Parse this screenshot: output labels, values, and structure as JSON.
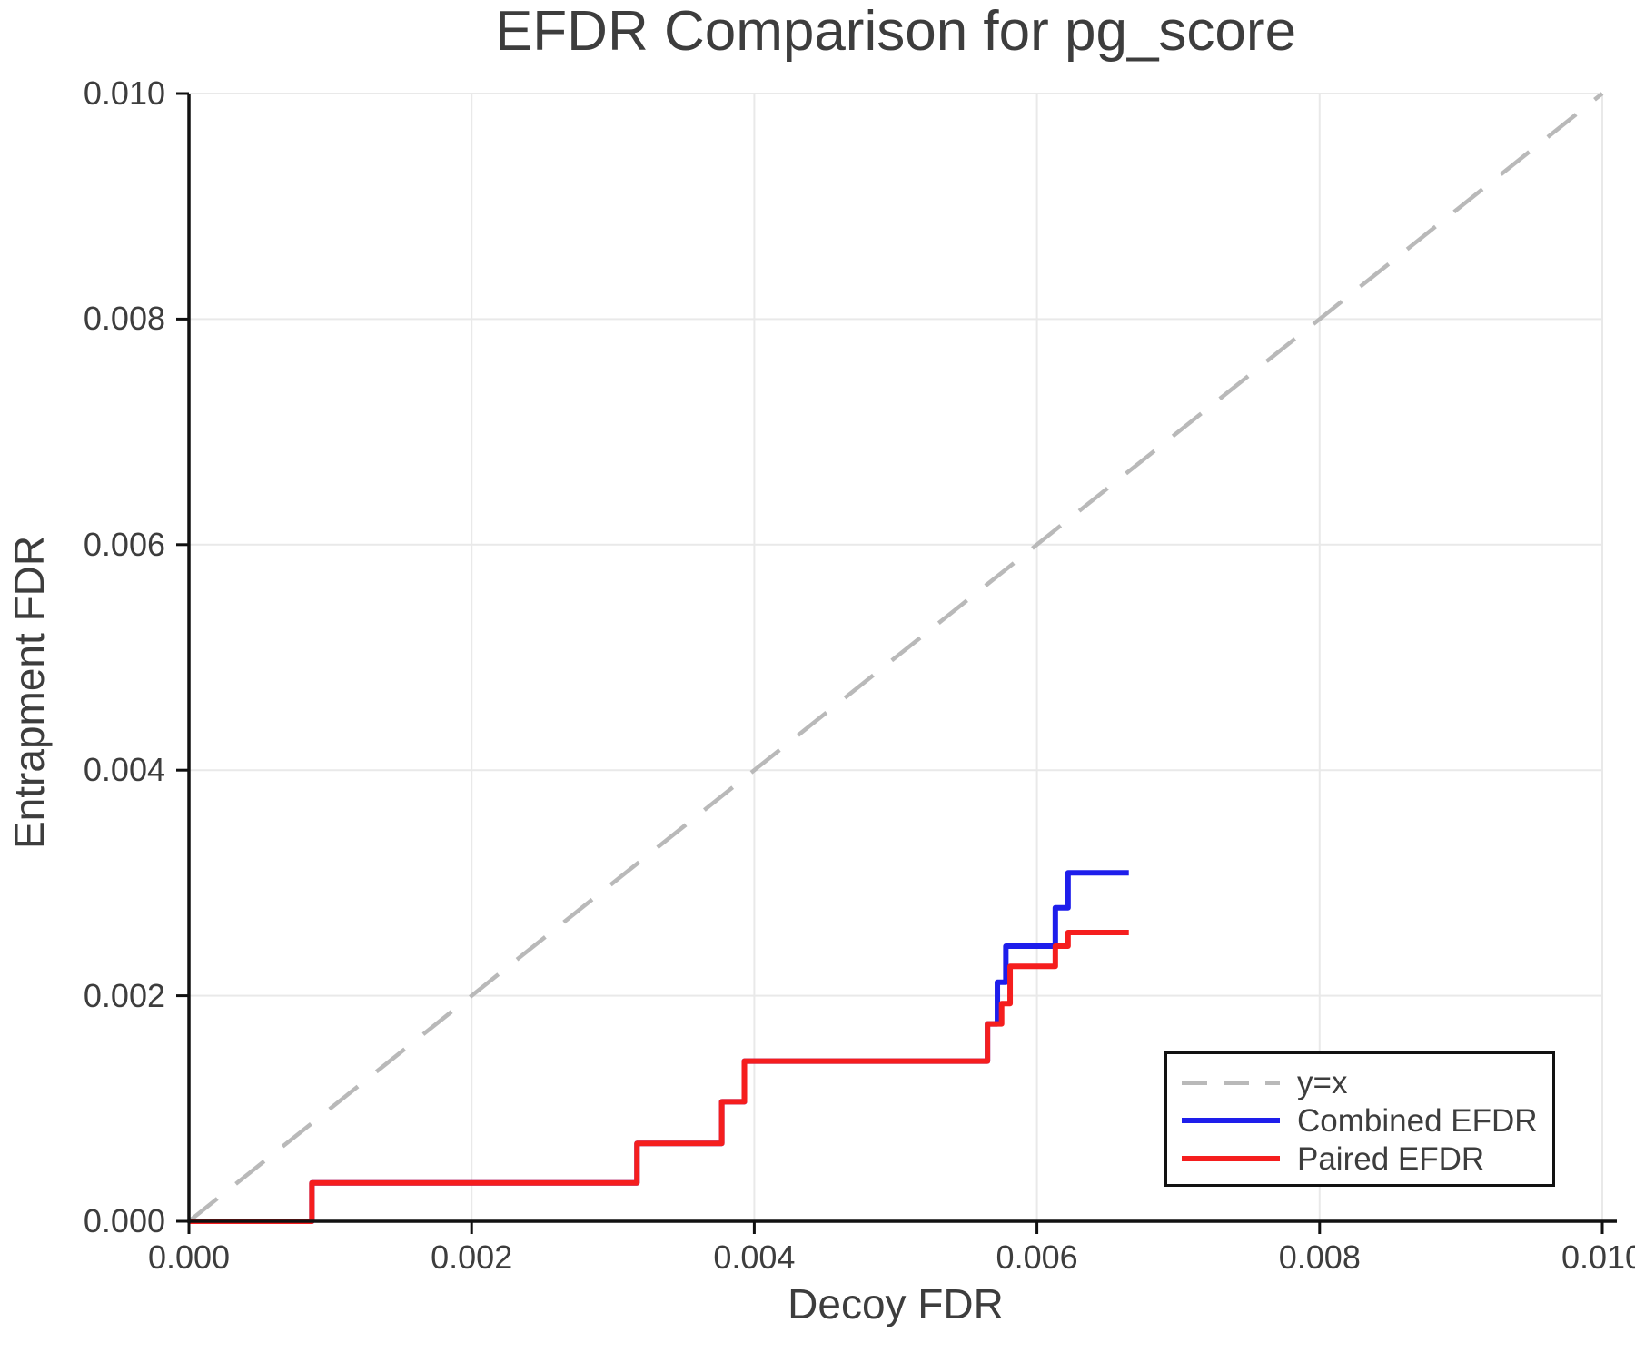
{
  "title": "EFDR Comparison for pg_score",
  "axes": {
    "x_label": "Decoy FDR",
    "y_label": "Entrapment FDR",
    "x_ticks": [
      "0.000",
      "0.002",
      "0.004",
      "0.006",
      "0.008",
      "0.010"
    ],
    "y_ticks": [
      "0.000",
      "0.002",
      "0.004",
      "0.006",
      "0.008",
      "0.010"
    ]
  },
  "legend": {
    "items": [
      {
        "label": "y=x",
        "color": "#b9b9b9",
        "style": "dashed"
      },
      {
        "label": "Combined EFDR",
        "color": "#1e1eeb",
        "style": "solid"
      },
      {
        "label": "Paired EFDR",
        "color": "#f51e1e",
        "style": "solid"
      }
    ]
  },
  "colors": {
    "identity_line": "#b9b9b9",
    "combined_line": "#1e1eeb",
    "paired_line": "#f51e1e",
    "grid": "#e9e9e9",
    "spine": "#111111",
    "text": "#3d3d3d"
  },
  "chart_data": {
    "type": "line",
    "title": "EFDR Comparison for pg_score",
    "xlabel": "Decoy FDR",
    "ylabel": "Entrapment FDR",
    "xlim": [
      0,
      0.01
    ],
    "ylim": [
      0,
      0.01
    ],
    "x_tick_values": [
      0,
      0.002,
      0.004,
      0.006,
      0.008,
      0.01
    ],
    "y_tick_values": [
      0,
      0.002,
      0.004,
      0.006,
      0.008,
      0.01
    ],
    "grid": true,
    "legend_position": "lower right",
    "series": [
      {
        "name": "y=x",
        "style": "dashed",
        "color": "#b9b9b9",
        "points": [
          [
            0,
            0
          ],
          [
            0.01,
            0.01
          ]
        ]
      },
      {
        "name": "Combined EFDR",
        "style": "solid",
        "color": "#1e1eeb",
        "points": [
          [
            0.0,
            0.0
          ],
          [
            0.00087,
            0.0
          ],
          [
            0.00087,
            0.00034
          ],
          [
            0.00317,
            0.00034
          ],
          [
            0.00317,
            0.00069
          ],
          [
            0.00377,
            0.00069
          ],
          [
            0.00377,
            0.00106
          ],
          [
            0.00393,
            0.00106
          ],
          [
            0.00393,
            0.00142
          ],
          [
            0.00565,
            0.00142
          ],
          [
            0.00565,
            0.00175
          ],
          [
            0.00572,
            0.00175
          ],
          [
            0.00572,
            0.00212
          ],
          [
            0.00578,
            0.00212
          ],
          [
            0.00578,
            0.00244
          ],
          [
            0.00613,
            0.00244
          ],
          [
            0.00613,
            0.00278
          ],
          [
            0.00622,
            0.00278
          ],
          [
            0.00622,
            0.00309
          ],
          [
            0.00665,
            0.00309
          ]
        ]
      },
      {
        "name": "Paired EFDR",
        "style": "solid",
        "color": "#f51e1e",
        "points": [
          [
            0.0,
            0.0
          ],
          [
            0.00087,
            0.0
          ],
          [
            0.00087,
            0.00034
          ],
          [
            0.00317,
            0.00034
          ],
          [
            0.00317,
            0.00069
          ],
          [
            0.00377,
            0.00069
          ],
          [
            0.00377,
            0.00106
          ],
          [
            0.00393,
            0.00106
          ],
          [
            0.00393,
            0.00142
          ],
          [
            0.00565,
            0.00142
          ],
          [
            0.00565,
            0.00175
          ],
          [
            0.00575,
            0.00175
          ],
          [
            0.00575,
            0.00193
          ],
          [
            0.00581,
            0.00193
          ],
          [
            0.00581,
            0.00226
          ],
          [
            0.00613,
            0.00226
          ],
          [
            0.00613,
            0.00244
          ],
          [
            0.00622,
            0.00244
          ],
          [
            0.00622,
            0.00256
          ],
          [
            0.00665,
            0.00256
          ]
        ]
      }
    ]
  }
}
